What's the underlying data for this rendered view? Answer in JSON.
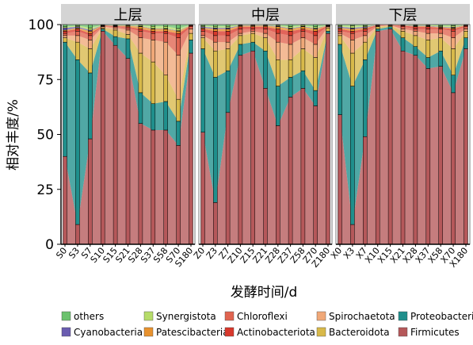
{
  "chart_data": {
    "type": "stacked-area-bar",
    "ylabel": "相对丰度/%",
    "xlabel": "发酵时间/d",
    "ylim": [
      0,
      100
    ],
    "y_ticks": [
      0,
      25,
      50,
      75,
      100
    ],
    "series_order": [
      "Firmicutes",
      "Proteobacteria",
      "Bacteroidota",
      "Spirochaetota",
      "Chloroflexi",
      "Actinobacteriota",
      "Patescibacteria",
      "Cyanobacteria",
      "Synergistota",
      "others"
    ],
    "colors": {
      "Firmicutes": "#b5585a",
      "Proteobacteria": "#1f8f8c",
      "Bacteroidota": "#d8b94a",
      "Spirochaetota": "#f0a878",
      "Chloroflexi": "#e06450",
      "Actinobacteriota": "#d8382c",
      "Patescibacteria": "#e8922e",
      "Cyanobacteria": "#6a5cb0",
      "Synergistota": "#b6dc6a",
      "others": "#6cc26e"
    },
    "legend": {
      "position": "bottom",
      "rows": [
        [
          "others",
          "Synergistota",
          "Chloroflexi",
          "Spirochaetota",
          "Proteobacteria"
        ],
        [
          "Cyanobacteria",
          "Patescibacteria",
          "Actinobacteriota",
          "Bacteroidota",
          "Firmicutes"
        ]
      ]
    },
    "panels": [
      {
        "title": "上层",
        "categories": [
          "S0",
          "S3",
          "S7",
          "S10",
          "S15",
          "S21",
          "S28",
          "S37",
          "S58",
          "S70",
          "S180"
        ],
        "series": [
          {
            "name": "Firmicutes",
            "values": [
              40,
              9,
              48,
              97,
              91,
              85,
              55,
              52,
              52,
              45,
              87
            ]
          },
          {
            "name": "Proteobacteria",
            "values": [
              52,
              75,
              30,
              1,
              4,
              9,
              14,
              12,
              13,
              11,
              6
            ]
          },
          {
            "name": "Bacteroidota",
            "values": [
              2,
              8,
              11,
              0.5,
              3,
              2,
              18,
              19,
              12,
              10,
              3
            ]
          },
          {
            "name": "Spirochaetota",
            "values": [
              1,
              3,
              4,
              0.5,
              1,
              2,
              7,
              10,
              15,
              20,
              2
            ]
          },
          {
            "name": "Chloroflexi",
            "values": [
              1,
              2,
              2,
              0.3,
              0.5,
              1,
              3,
              3,
              4,
              8,
              1
            ]
          },
          {
            "name": "Actinobacteriota",
            "values": [
              1,
              1,
              1,
              0.2,
              0.3,
              0.5,
              1,
              1,
              1,
              2,
              0.5
            ]
          },
          {
            "name": "Patescibacteria",
            "values": [
              0.5,
              0.5,
              1,
              0.2,
              0.2,
              0.5,
              1,
              1,
              1,
              1,
              0.2
            ]
          },
          {
            "name": "Cyanobacteria",
            "values": [
              1,
              0.5,
              0.5,
              0.1,
              0.1,
              0.1,
              0.2,
              0.2,
              0.2,
              0.2,
              0.1
            ]
          },
          {
            "name": "Synergistota",
            "values": [
              0.5,
              0.5,
              1,
              0.1,
              0.1,
              0.1,
              0.5,
              1,
              1,
              1,
              0.1
            ]
          },
          {
            "name": "others",
            "values": [
              1,
              0.5,
              1.5,
              0.1,
              0.3,
              0.3,
              0.3,
              0.8,
              0.8,
              1.8,
              0.1
            ]
          }
        ]
      },
      {
        "title": "中层",
        "categories": [
          "Z0",
          "Z3",
          "Z7",
          "Z10",
          "Z15",
          "Z21",
          "Z28",
          "Z37",
          "Z58",
          "Z70",
          "Z180"
        ],
        "series": [
          {
            "name": "Firmicutes",
            "values": [
              51,
              19,
              60,
              86,
              88,
              71,
              54,
              67,
              71,
              63,
              96
            ]
          },
          {
            "name": "Proteobacteria",
            "values": [
              38,
              57,
              19,
              5,
              4,
              17,
              18,
              9,
              8,
              7,
              1
            ]
          },
          {
            "name": "Bacteroidota",
            "values": [
              5,
              12,
              10,
              4,
              4,
              6,
              12,
              8,
              10,
              15,
              1.5
            ]
          },
          {
            "name": "Spirochaetota",
            "values": [
              1,
              4,
              3,
              1,
              1,
              2,
              8,
              7,
              5,
              6,
              0.5
            ]
          },
          {
            "name": "Chloroflexi",
            "values": [
              2,
              3,
              3,
              2,
              1,
              2,
              4,
              4,
              3,
              4,
              0.3
            ]
          },
          {
            "name": "Actinobacteriota",
            "values": [
              1,
              2,
              2,
              1,
              1,
              1,
              2,
              2,
              1,
              2,
              0.2
            ]
          },
          {
            "name": "Patescibacteria",
            "values": [
              0.5,
              1,
              1,
              0.5,
              0.5,
              0.5,
              1,
              1,
              1,
              1,
              0.1
            ]
          },
          {
            "name": "Cyanobacteria",
            "values": [
              0.5,
              0.5,
              0.5,
              0.2,
              0.2,
              0.2,
              0.3,
              0.3,
              0.2,
              0.3,
              0.1
            ]
          },
          {
            "name": "Synergistota",
            "values": [
              0.5,
              0.7,
              0.7,
              0.2,
              0.2,
              0.2,
              0.4,
              0.8,
              0.5,
              0.7,
              0.1
            ]
          },
          {
            "name": "others",
            "values": [
              0.5,
              0.8,
              0.8,
              0.1,
              0.1,
              0.1,
              0.3,
              0.9,
              0.3,
              1,
              0.2
            ]
          }
        ]
      },
      {
        "title": "下层",
        "categories": [
          "X0",
          "X3",
          "X7",
          "X10",
          "X15",
          "X21",
          "X28",
          "X37",
          "X58",
          "X70",
          "X180"
        ],
        "series": [
          {
            "name": "Firmicutes",
            "values": [
              59,
              9,
              49,
              97,
              98,
              88,
              86,
              80,
              81,
              69,
              89
            ]
          },
          {
            "name": "Proteobacteria",
            "values": [
              32,
              63,
              35,
              1,
              1,
              6,
              4,
              5,
              7,
              8,
              5
            ]
          },
          {
            "name": "Bacteroidota",
            "values": [
              4,
              15,
              8,
              1,
              0.5,
              3,
              5,
              8,
              6,
              12,
              3
            ]
          },
          {
            "name": "Spirochaetota",
            "values": [
              1,
              6,
              3,
              0.3,
              0.2,
              1,
              2,
              3,
              2,
              5,
              1
            ]
          },
          {
            "name": "Chloroflexi",
            "values": [
              1,
              3,
              2,
              0.3,
              0.1,
              1,
              1,
              2,
              2,
              3,
              1
            ]
          },
          {
            "name": "Actinobacteriota",
            "values": [
              1,
              1,
              1,
              0.2,
              0.1,
              0.5,
              1,
              1,
              0.5,
              1,
              0.5
            ]
          },
          {
            "name": "Patescibacteria",
            "values": [
              0.5,
              1,
              0.5,
              0.1,
              0.05,
              0.2,
              0.3,
              0.3,
              0.3,
              0.5,
              0.2
            ]
          },
          {
            "name": "Cyanobacteria",
            "values": [
              0.5,
              0.5,
              0.5,
              0.05,
              0.02,
              0.1,
              0.2,
              0.2,
              0.2,
              0.3,
              0.1
            ]
          },
          {
            "name": "Synergistota",
            "values": [
              0.5,
              1,
              0.5,
              0.03,
              0.02,
              0.1,
              0.3,
              0.3,
              0.5,
              0.7,
              0.1
            ]
          },
          {
            "name": "others",
            "values": [
              0.5,
              0.5,
              0.5,
              0.02,
              0.01,
              0.1,
              0.2,
              0.2,
              0.5,
              0.5,
              0.1
            ]
          }
        ]
      }
    ]
  }
}
